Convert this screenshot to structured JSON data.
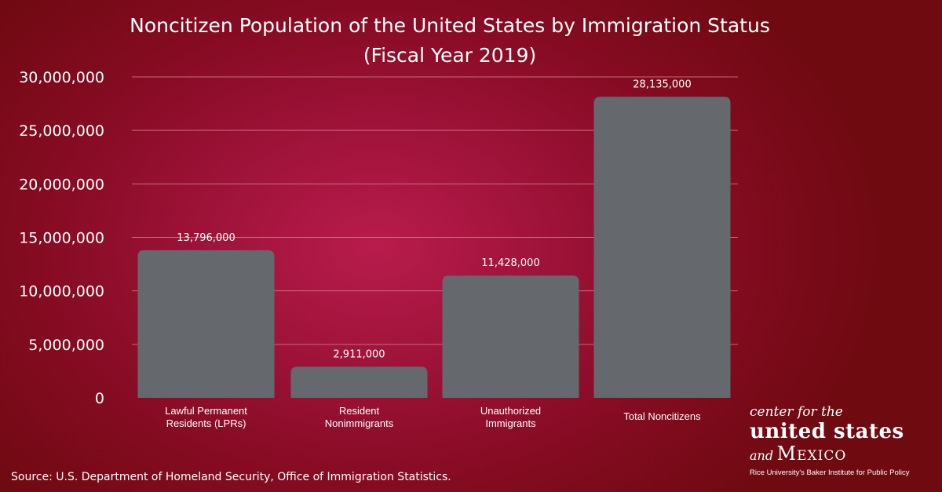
{
  "title": {
    "line1": "Noncitizen Population of the United States by Immigration Status",
    "line2": "(Fiscal Year 2019)"
  },
  "chart_data": {
    "type": "bar",
    "title": "Noncitizen Population of the United States by Immigration Status (Fiscal Year 2019)",
    "categories": [
      [
        "Lawful Permanent",
        "Residents (LPRs)"
      ],
      [
        "Resident",
        "Nonimmigrants"
      ],
      [
        "Unauthorized",
        "Immigrants"
      ],
      [
        "Total Noncitizens"
      ]
    ],
    "values": [
      13796000,
      2911000,
      11428000,
      28135000
    ],
    "value_labels": [
      "13,796,000",
      "2,911,000",
      "11,428,000",
      "28,135,000"
    ],
    "ylim": [
      0,
      30000000
    ],
    "yticks": [
      0,
      5000000,
      10000000,
      15000000,
      20000000,
      25000000,
      30000000
    ],
    "ytick_labels": [
      "0",
      "5,000,000",
      "10,000,000",
      "15,000,000",
      "20,000,000",
      "25,000,000",
      "30,000,000"
    ],
    "grid": true,
    "bar_color": "#65696e",
    "grid_color": "#d98a92",
    "legend": "none"
  },
  "source": "Source: U.S. Department of Homeland Security, Office of Immigration Statistics.",
  "logo": {
    "line1": "center for the",
    "line2": "united states",
    "line3_and": "and",
    "line3_mexico": "Mexico",
    "line4": "Rice University's Baker Institute for Public Policy"
  }
}
